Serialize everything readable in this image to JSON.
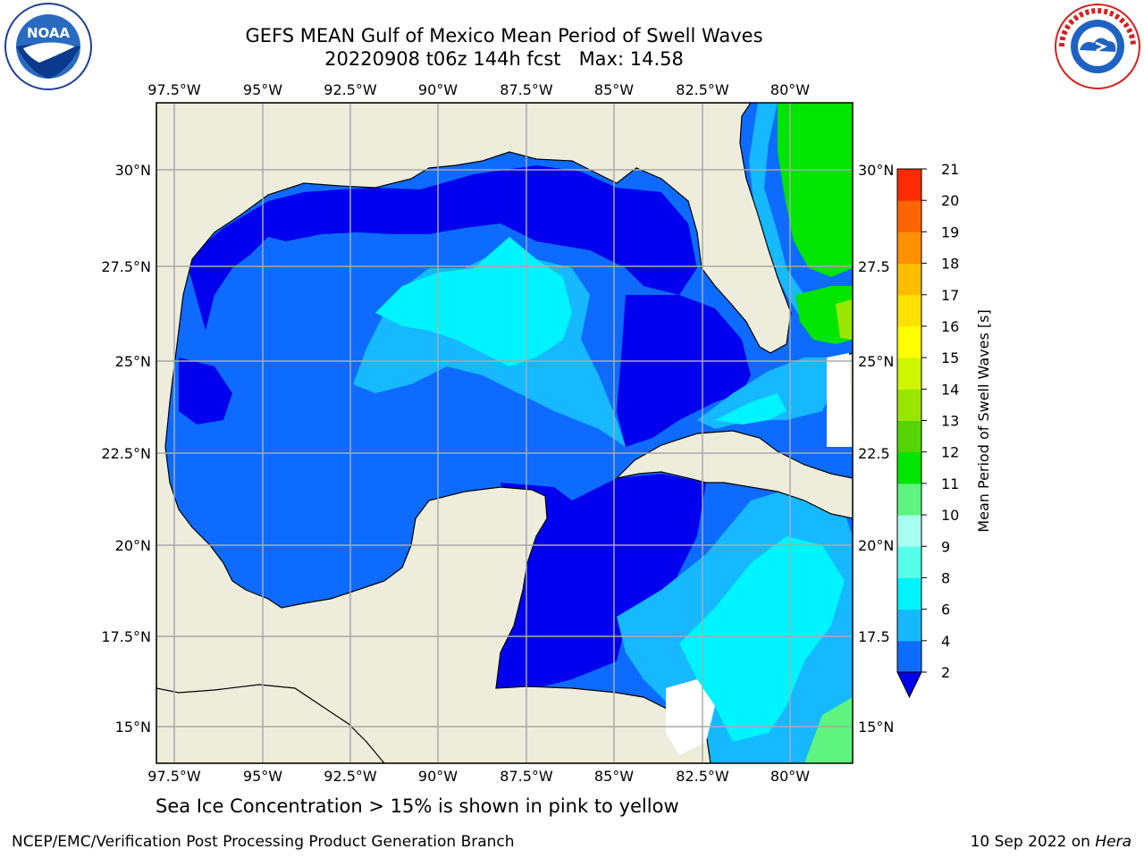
{
  "title_line1": "GEFS MEAN Gulf of Mexico Mean Period of Swell Waves",
  "title_line2": "20220908 t06z 144h fcst   Max: 14.58",
  "note": "Sea Ice Concentration > 15% is shown in pink to yellow",
  "footer_left": "NCEP/EMC/Verification Post Processing Product Generation Branch",
  "footer_right_date": "10 Sep 2022 on ",
  "footer_right_machine": "Hera",
  "logos": {
    "left": "noaa-logo",
    "right": "national-weather-service-logo"
  },
  "colors": {
    "land": "#eeecdb",
    "grid": "#aaaaaa"
  },
  "chart_data": {
    "type": "heatmap",
    "title": "GEFS MEAN Gulf of Mexico Mean Period of Swell Waves",
    "subtitle": "20220908 t06z 144h fcst   Max: 14.58",
    "max_value": 14.58,
    "lon_range": [
      -98,
      -78
    ],
    "lat_range": [
      14,
      32
    ],
    "x_ticks": [
      "97.5°W",
      "95°W",
      "92.5°W",
      "90°W",
      "87.5°W",
      "85°W",
      "82.5°W",
      "80°W"
    ],
    "y_ticks": [
      "30°N",
      "27.5°N",
      "25°N",
      "22.5°N",
      "20°N",
      "17.5°N",
      "15°N"
    ],
    "y_ticks_right": [
      "30°N",
      "27.5",
      "25°N",
      "22.5",
      "20°N",
      "17.5",
      "15°N"
    ],
    "grid": true,
    "colorbar": {
      "label": "Mean Period of Swell Waves [s]",
      "ticks": [
        2,
        4,
        6,
        8,
        9,
        10,
        11,
        12,
        13,
        14,
        15,
        16,
        17,
        18,
        19,
        20,
        21
      ],
      "colors": [
        "#0d6cff",
        "#16b8ff",
        "#00f4ff",
        "#55ffe9",
        "#a7fff0",
        "#5ef47f",
        "#00e600",
        "#54d400",
        "#9be600",
        "#d0f500",
        "#ffff00",
        "#ffe100",
        "#ffbd00",
        "#ff9000",
        "#ff6400",
        "#ff2a00"
      ],
      "extend_min_color": "#0000ee"
    }
  }
}
